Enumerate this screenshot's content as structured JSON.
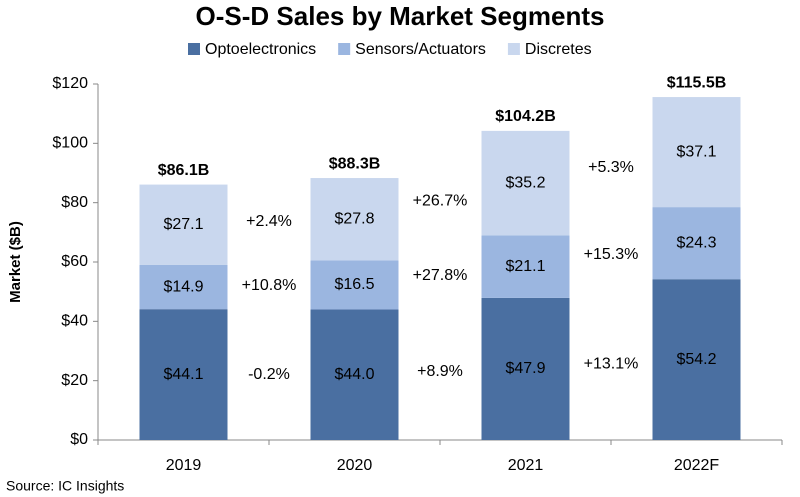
{
  "chart_data": {
    "type": "stacked_bar",
    "title": "O-S-D Sales by Market Segments",
    "ylabel": "Market ($B)",
    "source": "Source: IC Insights",
    "categories": [
      "2019",
      "2020",
      "2021",
      "2022F"
    ],
    "series": [
      {
        "name": "Optoelectronics",
        "color": "#4a6fa1",
        "label_color": "#ffffff",
        "values": [
          44.1,
          44.0,
          47.9,
          54.2
        ],
        "value_labels": [
          "$44.1",
          "$44.0",
          "$47.9",
          "$54.2"
        ],
        "growth": [
          -0.2,
          8.9,
          13.1
        ],
        "growth_labels": [
          "-0.2%",
          "+8.9%",
          "+13.1%"
        ]
      },
      {
        "name": "Sensors/Actuators",
        "color": "#9bb6e0",
        "label_color": "#000000",
        "values": [
          14.9,
          16.5,
          21.1,
          24.3
        ],
        "value_labels": [
          "$14.9",
          "$16.5",
          "$21.1",
          "$24.3"
        ],
        "growth": [
          10.8,
          27.8,
          15.3
        ],
        "growth_labels": [
          "+10.8%",
          "+27.8%",
          "+15.3%"
        ]
      },
      {
        "name": "Discretes",
        "color": "#c9d7ee",
        "label_color": "#000000",
        "values": [
          27.1,
          27.8,
          35.2,
          37.1
        ],
        "value_labels": [
          "$27.1",
          "$27.8",
          "$35.2",
          "$37.1"
        ],
        "growth": [
          2.4,
          26.7,
          5.3
        ],
        "growth_labels": [
          "+2.4%",
          "+26.7%",
          "+5.3%"
        ]
      }
    ],
    "totals": {
      "values": [
        86.1,
        88.3,
        104.2,
        115.5
      ],
      "value_labels": [
        "$86.1B",
        "$88.3B",
        "$104.2B",
        "$115.5B"
      ]
    },
    "ylim": [
      0,
      120
    ],
    "yticks": [
      {
        "value": 0,
        "label": "$0"
      },
      {
        "value": 20,
        "label": "$20"
      },
      {
        "value": 40,
        "label": "$40"
      },
      {
        "value": 60,
        "label": "$60"
      },
      {
        "value": 80,
        "label": "$80"
      },
      {
        "value": 100,
        "label": "$100"
      },
      {
        "value": 120,
        "label": "$120"
      }
    ],
    "grid": false,
    "legend": "top"
  }
}
